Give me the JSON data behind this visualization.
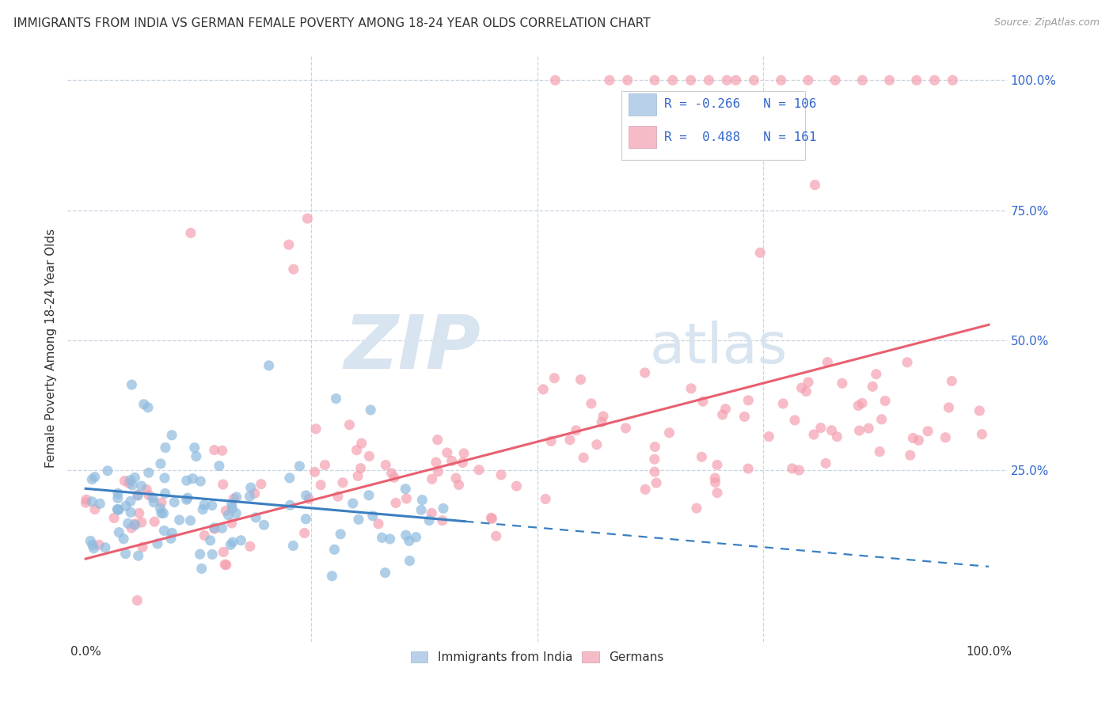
{
  "title": "IMMIGRANTS FROM INDIA VS GERMAN FEMALE POVERTY AMONG 18-24 YEAR OLDS CORRELATION CHART",
  "source": "Source: ZipAtlas.com",
  "ylabel": "Female Poverty Among 18-24 Year Olds",
  "xlim": [
    -0.02,
    1.02
  ],
  "ylim": [
    -0.08,
    1.05
  ],
  "legend_r_blue": "-0.266",
  "legend_n_blue": "106",
  "legend_r_pink": "0.488",
  "legend_n_pink": "161",
  "blue_legend_color": "#b8d0ea",
  "pink_legend_color": "#f5bcc8",
  "blue_line_color": "#3a7fc1",
  "pink_line_color": "#e86070",
  "blue_dot_color": "#90bbdf",
  "pink_dot_color": "#f4a0b0",
  "watermark_zip": "ZIP",
  "watermark_atlas": "atlas",
  "watermark_color": "#d8e4ef",
  "background_color": "#ffffff",
  "grid_color": "#c8d4e0",
  "title_fontsize": 11,
  "axis_label_color": "#3366cc",
  "text_color": "#333333",
  "seed": 7
}
